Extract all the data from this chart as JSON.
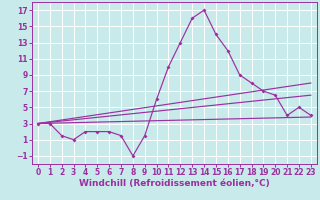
{
  "background_color": "#c8eaea",
  "line_color": "#9b30a0",
  "grid_color": "#ffffff",
  "xlabel": "Windchill (Refroidissement éolien,°C)",
  "xlabel_fontsize": 6.5,
  "tick_fontsize": 5.5,
  "ylim": [
    -2,
    18
  ],
  "xlim": [
    -0.5,
    23.5
  ],
  "yticks": [
    -1,
    1,
    3,
    5,
    7,
    9,
    11,
    13,
    15,
    17
  ],
  "xticks": [
    0,
    1,
    2,
    3,
    4,
    5,
    6,
    7,
    8,
    9,
    10,
    11,
    12,
    13,
    14,
    15,
    16,
    17,
    18,
    19,
    20,
    21,
    22,
    23
  ],
  "line1_x": [
    0,
    1,
    2,
    3,
    4,
    5,
    6,
    7,
    8,
    9,
    10,
    11,
    12,
    13,
    14,
    15,
    16,
    17,
    18,
    19,
    20,
    21,
    22,
    23
  ],
  "line1_y": [
    3,
    3,
    1.5,
    1,
    2,
    2,
    2,
    1.5,
    -1,
    1.5,
    6,
    10,
    13,
    16,
    17,
    14,
    12,
    9,
    8,
    7,
    6.5,
    4,
    5,
    4
  ],
  "line2_x": [
    0,
    23
  ],
  "line2_y": [
    3,
    8
  ],
  "line3_x": [
    0,
    23
  ],
  "line3_y": [
    3,
    6.5
  ],
  "line4_x": [
    0,
    23
  ],
  "line4_y": [
    3,
    3.8
  ]
}
